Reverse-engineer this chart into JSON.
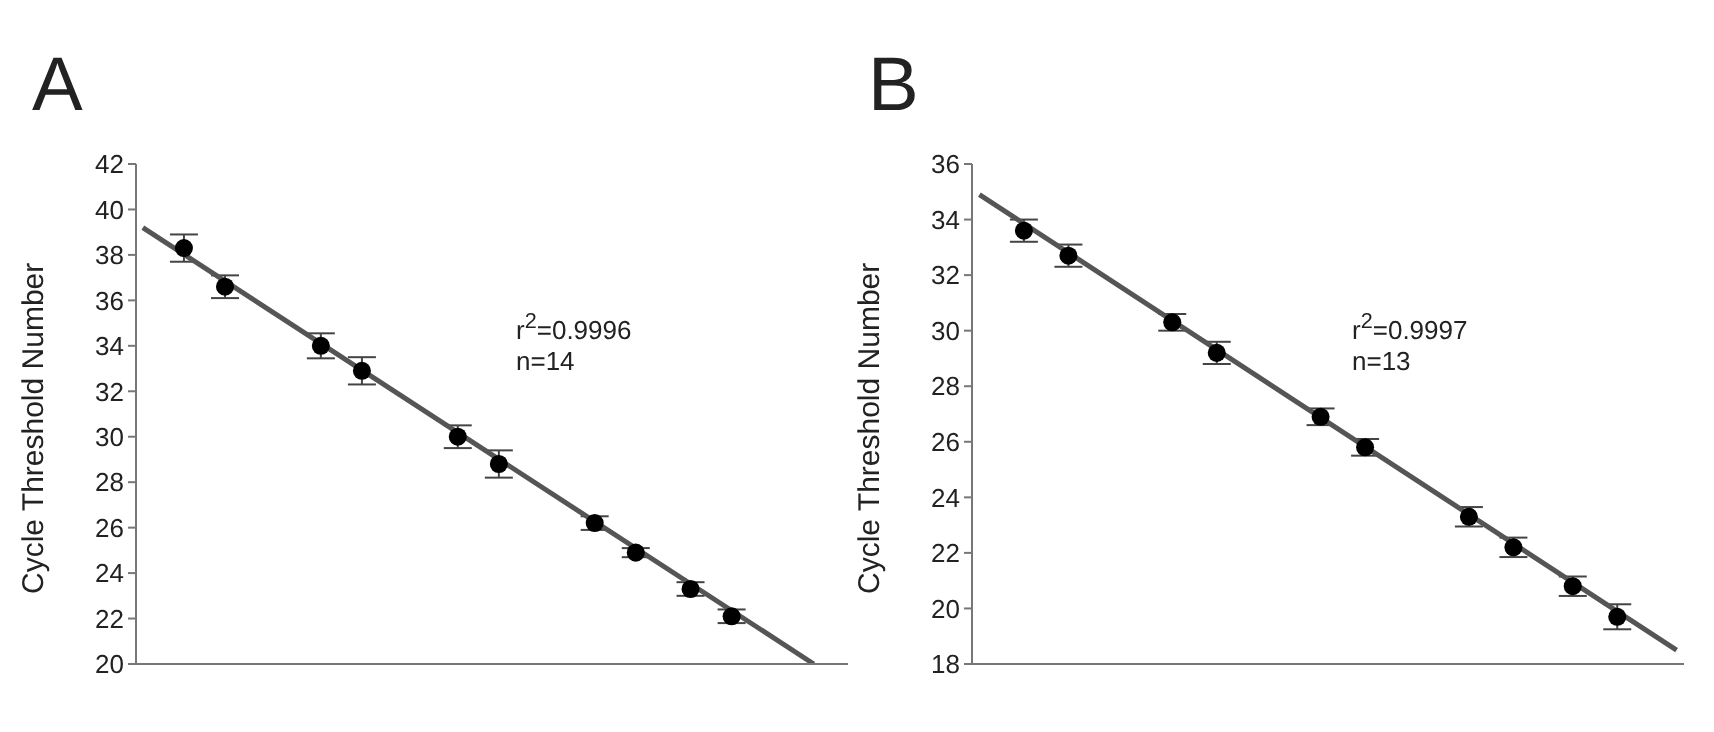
{
  "chart_data": [
    {
      "type": "scatter",
      "title": "A",
      "ylabel": "Cycle Threshold Number",
      "categories": [
        null,
        null,
        null,
        null,
        null,
        null,
        null,
        null,
        null,
        null,
        null,
        null,
        null,
        null,
        null,
        null,
        null,
        null,
        null,
        null,
        null,
        null,
        null,
        null,
        null,
        null,
        null,
        null,
        null,
        null,
        null,
        null,
        null,
        null,
        null,
        null,
        null,
        null,
        null,
        null,
        null,
        null,
        null,
        null,
        null,
        null,
        null,
        null,
        null,
        null,
        null,
        null
      ],
      "ylim": [
        20,
        42
      ],
      "yticks": [
        20,
        22,
        24,
        26,
        28,
        30,
        32,
        34,
        36,
        38,
        40,
        42
      ],
      "tick_labels": "y",
      "annotations": [
        "r$^{2}$=0.9996",
        "n=14"
      ],
      "series": [
        {
          "color": "#000000",
          "marker": "circle",
          "values": [
            null,
            null,
            null,
            38.3,
            null,
            null,
            36.6,
            null,
            null,
            null,
            null,
            null,
            null,
            34.0,
            null,
            null,
            32.9,
            null,
            null,
            null,
            null,
            null,
            null,
            30.0,
            null,
            null,
            28.8,
            null,
            null,
            null,
            null,
            null,
            null,
            26.2,
            null,
            null,
            24.9,
            null,
            null,
            null,
            23.3,
            null,
            null,
            22.1,
            null,
            null,
            null,
            null,
            null,
            null,
            null,
            null
          ],
          "errors": [
            null,
            null,
            null,
            0.6,
            null,
            null,
            0.5,
            null,
            null,
            null,
            null,
            null,
            null,
            0.55,
            null,
            null,
            0.6,
            null,
            null,
            null,
            null,
            null,
            null,
            0.5,
            null,
            null,
            0.6,
            null,
            null,
            null,
            null,
            null,
            null,
            0.3,
            null,
            null,
            0.2,
            null,
            null,
            null,
            0.3,
            null,
            null,
            0.3,
            null,
            null,
            null,
            null,
            null,
            null,
            null,
            null
          ]
        },
        {
          "type": "line",
          "color": "#555555",
          "marker": "none",
          "values": [
            39.2,
            null,
            null,
            null,
            null,
            null,
            null,
            null,
            null,
            null,
            null,
            null,
            null,
            null,
            null,
            null,
            null,
            null,
            null,
            null,
            null,
            null,
            null,
            null,
            null,
            null,
            null,
            null,
            null,
            null,
            null,
            null,
            null,
            null,
            null,
            null,
            null,
            null,
            null,
            null,
            null,
            null,
            null,
            null,
            null,
            null,
            null,
            null,
            null,
            20.0,
            null,
            null
          ]
        }
      ]
    },
    {
      "type": "scatter",
      "title": "B",
      "ylabel": "Cycle Threshold Number",
      "categories": [
        null,
        null,
        null,
        null,
        null,
        null,
        null,
        null,
        null,
        null,
        null,
        null,
        null,
        null,
        null,
        null,
        null,
        null,
        null,
        null,
        null,
        null,
        null,
        null,
        null,
        null,
        null,
        null,
        null,
        null,
        null,
        null,
        null,
        null,
        null,
        null,
        null,
        null,
        null,
        null,
        null,
        null,
        null,
        null,
        null,
        null,
        null,
        null
      ],
      "ylim": [
        18,
        36
      ],
      "yticks": [
        18,
        20,
        22,
        24,
        26,
        28,
        30,
        32,
        34,
        36
      ],
      "tick_labels": "y",
      "annotations": [
        "r$^{2}$=0.9997",
        "n=13"
      ],
      "series": [
        {
          "color": "#000000",
          "marker": "circle",
          "values": [
            null,
            null,
            null,
            33.6,
            null,
            null,
            32.7,
            null,
            null,
            null,
            null,
            null,
            null,
            30.3,
            null,
            null,
            29.2,
            null,
            null,
            null,
            null,
            null,
            null,
            26.9,
            null,
            null,
            25.8,
            null,
            null,
            null,
            null,
            null,
            null,
            23.3,
            null,
            null,
            22.2,
            null,
            null,
            null,
            20.8,
            null,
            null,
            19.7,
            null,
            null,
            null,
            null
          ],
          "errors": [
            null,
            null,
            null,
            0.4,
            null,
            null,
            0.4,
            null,
            null,
            null,
            null,
            null,
            null,
            0.3,
            null,
            null,
            0.4,
            null,
            null,
            null,
            null,
            null,
            null,
            0.3,
            null,
            null,
            0.3,
            null,
            null,
            null,
            null,
            null,
            null,
            0.35,
            null,
            null,
            0.35,
            null,
            null,
            null,
            0.35,
            null,
            null,
            0.45,
            null,
            null,
            null,
            null
          ]
        },
        {
          "type": "line",
          "color": "#555555",
          "marker": "none",
          "values": [
            34.9,
            null,
            null,
            null,
            null,
            null,
            null,
            null,
            null,
            null,
            null,
            null,
            null,
            null,
            null,
            null,
            null,
            null,
            null,
            null,
            null,
            null,
            null,
            null,
            null,
            null,
            null,
            null,
            null,
            null,
            null,
            null,
            null,
            null,
            null,
            null,
            null,
            null,
            null,
            null,
            null,
            null,
            null,
            null,
            null,
            null,
            null,
            18.5
          ]
        }
      ]
    }
  ]
}
